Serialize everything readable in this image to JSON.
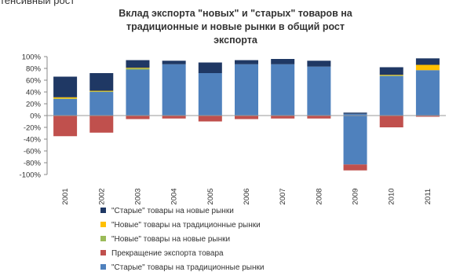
{
  "caption_fragment": "тенсивный рост",
  "chart_data": {
    "type": "bar",
    "stacked": true,
    "title_lines": [
      "Вклад экспорта \"новых\"  и \"старых\" товаров на",
      "традиционные и новые рынки в  общий рост",
      "экспорта"
    ],
    "categories": [
      "2001",
      "2002",
      "2003",
      "2004",
      "2005",
      "2006",
      "2007",
      "2008",
      "2009",
      "2010",
      "2011"
    ],
    "ylim": [
      -100,
      100
    ],
    "yticks": [
      100,
      80,
      60,
      40,
      20,
      0,
      -20,
      -40,
      -60,
      -80,
      -100
    ],
    "ytick_labels": [
      "100%",
      "80%",
      "60%",
      "40%",
      "20%",
      "0%",
      "-20%",
      "-40%",
      "-60%",
      "-80%",
      "-100%"
    ],
    "grid": false,
    "legend_position": "bottom",
    "series": [
      {
        "name": "\"Старые\" товары на традиционные рынки",
        "color": "#4f81bd",
        "values": [
          28,
          40,
          78,
          87,
          72,
          87,
          87,
          83,
          3,
          67,
          77
        ]
      },
      {
        "name": "\"Новые\" товары на новые рынки",
        "color": "#9bbb59",
        "values": [
          1,
          1,
          2,
          0,
          0,
          0,
          0,
          0,
          0,
          1,
          0
        ]
      },
      {
        "name": "\"Новые\" товары на традиционные рынки",
        "color": "#ffc000",
        "values": [
          2,
          1,
          1,
          0,
          0,
          0,
          0,
          0,
          0,
          1,
          9
        ]
      },
      {
        "name": "\"Старые\" товары на новые рынки",
        "color": "#1f3864",
        "values": [
          35,
          30,
          13,
          6,
          18,
          7,
          9,
          10,
          2,
          13,
          11
        ]
      },
      {
        "name": "Прекращение экспорта товара",
        "color": "#c0504d",
        "values": [
          -35,
          -29,
          -6,
          -5,
          -10,
          -6,
          -5,
          -5,
          -10,
          -20,
          -2
        ]
      }
    ],
    "negative_base_series": {
      "series_index": 0,
      "values": [
        0,
        0,
        0,
        0,
        0,
        0,
        0,
        0,
        -83,
        0,
        0
      ]
    },
    "legend_order": [
      3,
      2,
      1,
      4,
      0
    ]
  }
}
